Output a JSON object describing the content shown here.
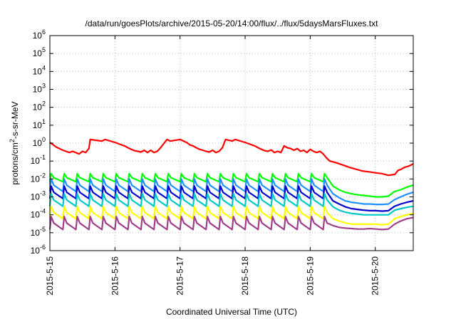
{
  "chart_data": {
    "type": "line",
    "title": "/data/run/goesPlots/archive/2015-05-20/14:00/flux/../flux/5daysMarsFluxes.txt",
    "xlabel": "Coordinated Universal Time (UTC)",
    "ylabel_main": "protons/cm",
    "ylabel_sup": "2",
    "ylabel_rest": "-s-sr-MeV",
    "yscale": "log",
    "ylim": [
      1e-06,
      1000000.0
    ],
    "y_ticks": [
      {
        "base": "10",
        "exp": "-6"
      },
      {
        "base": "10",
        "exp": "-5"
      },
      {
        "base": "10",
        "exp": "-4"
      },
      {
        "base": "10",
        "exp": "-3"
      },
      {
        "base": "10",
        "exp": "-2"
      },
      {
        "base": "10",
        "exp": "-1"
      },
      {
        "base": "10",
        "exp": "0"
      },
      {
        "base": "10",
        "exp": "1"
      },
      {
        "base": "10",
        "exp": "2"
      },
      {
        "base": "10",
        "exp": "3"
      },
      {
        "base": "10",
        "exp": "4"
      },
      {
        "base": "10",
        "exp": "5"
      },
      {
        "base": "10",
        "exp": "6"
      }
    ],
    "xlim": [
      "2015-05-15 00:00",
      "2015-05-20 14:00"
    ],
    "x_ticks": [
      "2015-5-15",
      "2015-5-16",
      "2015-5-17",
      "2015-5-18",
      "2015-5-19",
      "2015-5-20"
    ],
    "grid": true,
    "series": [
      {
        "color": "#ff0000",
        "kind": "red",
        "x": [
          0,
          0.1,
          0.2,
          0.3,
          0.35,
          0.45,
          0.5,
          0.55,
          0.6,
          0.62,
          0.8,
          0.85,
          1.0,
          1.1,
          1.15,
          1.2,
          1.25,
          1.3,
          1.35,
          1.4,
          1.45,
          1.5,
          1.55,
          1.6,
          1.65,
          1.7,
          1.8,
          1.85,
          2.0,
          2.1,
          2.15,
          2.2,
          2.25,
          2.3,
          2.35,
          2.4,
          2.45,
          2.5,
          2.55,
          2.6,
          2.65,
          2.7,
          2.8,
          2.85,
          3.0,
          3.1,
          3.15,
          3.2,
          3.25,
          3.3,
          3.35,
          3.4,
          3.45,
          3.5,
          3.55,
          3.6,
          3.65,
          3.7,
          3.75,
          3.8,
          3.85,
          3.9,
          3.95,
          4.0,
          4.05,
          4.1,
          4.15,
          4.2,
          4.25,
          4.3,
          4.35,
          4.4,
          4.5,
          4.6,
          4.7,
          4.8,
          4.9,
          5.0,
          5.1,
          5.2,
          5.3,
          5.35,
          5.4,
          5.45,
          5.5,
          5.55,
          5.58
        ],
        "y": [
          1.1,
          0.6,
          0.4,
          0.3,
          0.35,
          0.25,
          0.35,
          0.3,
          0.5,
          1.6,
          1.3,
          1.6,
          1.1,
          0.8,
          0.7,
          0.55,
          0.45,
          0.38,
          0.35,
          0.32,
          0.4,
          0.3,
          0.4,
          0.3,
          0.35,
          0.55,
          1.6,
          1.3,
          1.6,
          1.1,
          0.8,
          0.7,
          0.55,
          0.45,
          0.4,
          0.35,
          0.32,
          0.4,
          0.3,
          0.35,
          0.55,
          1.6,
          1.3,
          1.6,
          1.1,
          0.8,
          0.7,
          0.55,
          0.45,
          0.38,
          0.35,
          0.42,
          0.3,
          0.35,
          0.3,
          0.7,
          0.55,
          0.5,
          0.4,
          0.5,
          0.35,
          0.4,
          0.3,
          0.45,
          0.35,
          0.3,
          0.35,
          0.25,
          0.15,
          0.1,
          0.09,
          0.08,
          0.06,
          0.045,
          0.035,
          0.028,
          0.025,
          0.022,
          0.02,
          0.016,
          0.018,
          0.03,
          0.035,
          0.045,
          0.05,
          0.06,
          0.07
        ]
      },
      {
        "color": "#00ff00",
        "kind": "spiky",
        "peak": 0.02,
        "trough": 0.007,
        "tail": [
          0.004,
          0.0025,
          0.0018,
          0.0015,
          0.0013,
          0.0012,
          0.0011,
          0.001,
          0.001,
          0.0011,
          0.002,
          0.0025,
          0.0035,
          0.0045
        ]
      },
      {
        "color": "#1e90ff",
        "kind": "spiky",
        "peak": 0.01,
        "trough": 0.002,
        "tail": [
          0.0015,
          0.0009,
          0.0006,
          0.0005,
          0.00045,
          0.0004,
          0.0004,
          0.00038,
          0.00038,
          0.0004,
          0.0007,
          0.001,
          0.0014,
          0.0018
        ]
      },
      {
        "color": "#0000cd",
        "kind": "spiky",
        "peak": 0.004,
        "trough": 0.0008,
        "tail": [
          0.0006,
          0.0004,
          0.00028,
          0.00022,
          0.0002,
          0.00018,
          0.00017,
          0.00017,
          0.00016,
          0.00017,
          0.0003,
          0.0004,
          0.0005,
          0.0006
        ]
      },
      {
        "color": "#00c8c8",
        "kind": "spiky",
        "peak": 0.0015,
        "trough": 0.0003,
        "tail": [
          0.00028,
          0.00018,
          0.00014,
          0.00012,
          0.00011,
          0.0001,
          0.0001,
          0.0001,
          0.0001,
          0.0001,
          0.00018,
          0.00022,
          0.00026,
          0.0003
        ]
      },
      {
        "color": "#ffff00",
        "kind": "spiky",
        "peak": 0.0003,
        "trough": 6e-05,
        "tail": [
          6e-05,
          4.5e-05,
          3.5e-05,
          3e-05,
          3e-05,
          3e-05,
          3e-05,
          3e-05,
          2.8e-05,
          3e-05,
          6e-05,
          8e-05,
          0.0001,
          0.00012
        ]
      },
      {
        "color": "#a0408c",
        "kind": "spiky",
        "peak": 8e-05,
        "trough": 1.5e-05,
        "tail": [
          2.5e-05,
          2e-05,
          1.8e-05,
          1.7e-05,
          1.6e-05,
          1.6e-05,
          1.7e-05,
          1.6e-05,
          1.5e-05,
          1.6e-05,
          3e-05,
          4.5e-05,
          6e-05,
          7e-05
        ]
      }
    ]
  }
}
